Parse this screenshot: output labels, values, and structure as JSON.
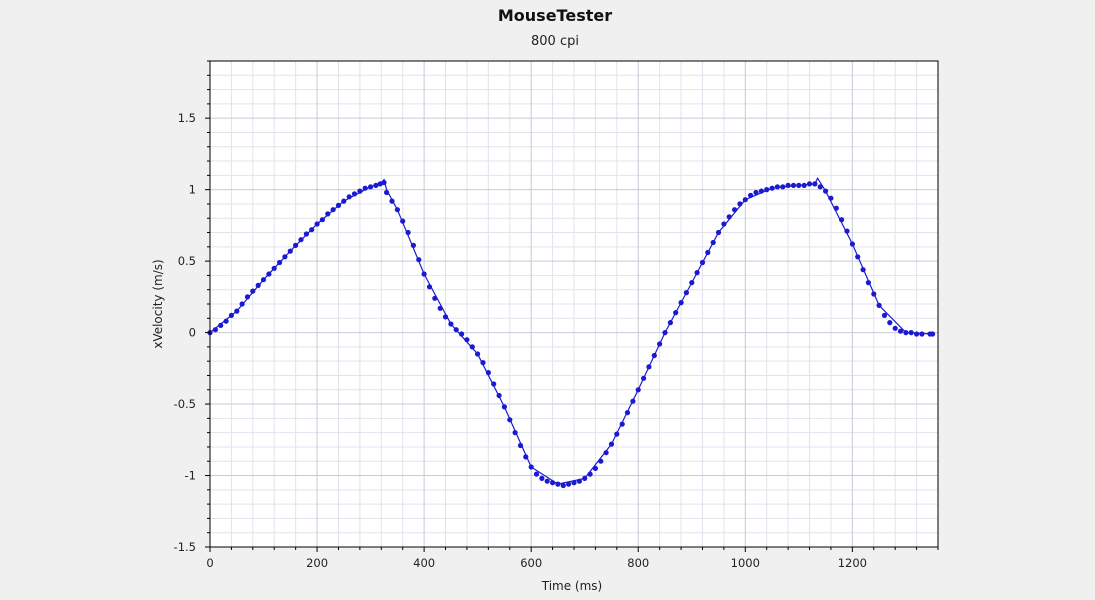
{
  "chart_data": {
    "type": "scatter",
    "title": "MouseTester",
    "subtitle": "800 cpi",
    "xlabel": "Time (ms)",
    "ylabel": "xVelocity (m/s)",
    "xlim": [
      0,
      1360
    ],
    "ylim": [
      -1.5,
      1.9
    ],
    "x_ticks": [
      0,
      200,
      400,
      600,
      800,
      1000,
      1200
    ],
    "x_tick_labels": [
      "0",
      "200",
      "400",
      "600",
      "800",
      "1000",
      "1200"
    ],
    "y_ticks": [
      1.5,
      1,
      0.5,
      0,
      -0.5,
      -1,
      -1.5
    ],
    "y_tick_labels": [
      "1.5",
      "1",
      "0.5",
      "0",
      "-0.5",
      "-1",
      "-1.5"
    ],
    "grid": true,
    "colors": {
      "background": "#f0f0f0",
      "plot_area": "#ffffff",
      "points": "#1a1ad2",
      "line": "#1a1ad2",
      "grid_major": "#c9c9d9",
      "grid_minor": "#e2e2ec",
      "axis": "#000000"
    },
    "series": [
      {
        "values": [
          [
            0,
            0.0
          ],
          [
            10,
            0.02
          ],
          [
            20,
            0.05
          ],
          [
            30,
            0.08
          ],
          [
            40,
            0.12
          ],
          [
            50,
            0.15
          ],
          [
            60,
            0.2
          ],
          [
            70,
            0.25
          ],
          [
            80,
            0.29
          ],
          [
            90,
            0.33
          ],
          [
            100,
            0.37
          ],
          [
            110,
            0.41
          ],
          [
            120,
            0.45
          ],
          [
            130,
            0.49
          ],
          [
            140,
            0.53
          ],
          [
            150,
            0.57
          ],
          [
            160,
            0.61
          ],
          [
            170,
            0.65
          ],
          [
            180,
            0.69
          ],
          [
            190,
            0.72
          ],
          [
            200,
            0.76
          ],
          [
            210,
            0.79
          ],
          [
            220,
            0.83
          ],
          [
            230,
            0.86
          ],
          [
            240,
            0.89
          ],
          [
            250,
            0.92
          ],
          [
            260,
            0.95
          ],
          [
            270,
            0.97
          ],
          [
            280,
            0.99
          ],
          [
            290,
            1.01
          ],
          [
            300,
            1.02
          ],
          [
            310,
            1.03
          ],
          [
            318,
            1.04
          ],
          [
            325,
            1.05
          ],
          [
            330,
            0.98
          ],
          [
            340,
            0.92
          ],
          [
            350,
            0.86
          ],
          [
            360,
            0.78
          ],
          [
            370,
            0.7
          ],
          [
            380,
            0.61
          ],
          [
            390,
            0.51
          ],
          [
            400,
            0.41
          ],
          [
            410,
            0.32
          ],
          [
            420,
            0.24
          ],
          [
            430,
            0.17
          ],
          [
            440,
            0.11
          ],
          [
            450,
            0.06
          ],
          [
            460,
            0.02
          ],
          [
            470,
            -0.01
          ],
          [
            480,
            -0.05
          ],
          [
            490,
            -0.1
          ],
          [
            500,
            -0.15
          ],
          [
            510,
            -0.21
          ],
          [
            520,
            -0.28
          ],
          [
            530,
            -0.36
          ],
          [
            540,
            -0.44
          ],
          [
            550,
            -0.52
          ],
          [
            560,
            -0.61
          ],
          [
            570,
            -0.7
          ],
          [
            580,
            -0.79
          ],
          [
            590,
            -0.87
          ],
          [
            600,
            -0.94
          ],
          [
            610,
            -0.99
          ],
          [
            620,
            -1.02
          ],
          [
            630,
            -1.04
          ],
          [
            640,
            -1.05
          ],
          [
            650,
            -1.06
          ],
          [
            660,
            -1.07
          ],
          [
            670,
            -1.06
          ],
          [
            680,
            -1.05
          ],
          [
            690,
            -1.04
          ],
          [
            700,
            -1.02
          ],
          [
            710,
            -0.99
          ],
          [
            720,
            -0.95
          ],
          [
            730,
            -0.9
          ],
          [
            740,
            -0.84
          ],
          [
            750,
            -0.78
          ],
          [
            760,
            -0.71
          ],
          [
            770,
            -0.64
          ],
          [
            780,
            -0.56
          ],
          [
            790,
            -0.48
          ],
          [
            800,
            -0.4
          ],
          [
            810,
            -0.32
          ],
          [
            820,
            -0.24
          ],
          [
            830,
            -0.16
          ],
          [
            840,
            -0.08
          ],
          [
            850,
            0.0
          ],
          [
            860,
            0.07
          ],
          [
            870,
            0.14
          ],
          [
            880,
            0.21
          ],
          [
            890,
            0.28
          ],
          [
            900,
            0.35
          ],
          [
            910,
            0.42
          ],
          [
            920,
            0.49
          ],
          [
            930,
            0.56
          ],
          [
            940,
            0.63
          ],
          [
            950,
            0.7
          ],
          [
            960,
            0.76
          ],
          [
            970,
            0.81
          ],
          [
            980,
            0.86
          ],
          [
            990,
            0.9
          ],
          [
            1000,
            0.93
          ],
          [
            1010,
            0.96
          ],
          [
            1020,
            0.98
          ],
          [
            1030,
            0.99
          ],
          [
            1040,
            1.0
          ],
          [
            1050,
            1.01
          ],
          [
            1060,
            1.02
          ],
          [
            1070,
            1.02
          ],
          [
            1080,
            1.03
          ],
          [
            1090,
            1.03
          ],
          [
            1100,
            1.03
          ],
          [
            1110,
            1.03
          ],
          [
            1120,
            1.04
          ],
          [
            1130,
            1.04
          ],
          [
            1140,
            1.02
          ],
          [
            1150,
            0.99
          ],
          [
            1160,
            0.94
          ],
          [
            1170,
            0.87
          ],
          [
            1180,
            0.79
          ],
          [
            1190,
            0.71
          ],
          [
            1200,
            0.62
          ],
          [
            1210,
            0.53
          ],
          [
            1220,
            0.44
          ],
          [
            1230,
            0.35
          ],
          [
            1240,
            0.27
          ],
          [
            1250,
            0.19
          ],
          [
            1260,
            0.12
          ],
          [
            1270,
            0.07
          ],
          [
            1280,
            0.03
          ],
          [
            1290,
            0.01
          ],
          [
            1300,
            0.0
          ],
          [
            1310,
            0.0
          ],
          [
            1320,
            -0.01
          ],
          [
            1330,
            -0.01
          ],
          [
            1345,
            -0.01
          ],
          [
            1350,
            -0.01
          ]
        ],
        "line_values": [
          [
            0,
            0.0
          ],
          [
            50,
            0.15
          ],
          [
            100,
            0.37
          ],
          [
            150,
            0.57
          ],
          [
            200,
            0.76
          ],
          [
            250,
            0.92
          ],
          [
            300,
            1.02
          ],
          [
            320,
            1.04
          ],
          [
            325,
            1.07
          ],
          [
            330,
            1.0
          ],
          [
            350,
            0.86
          ],
          [
            400,
            0.41
          ],
          [
            450,
            0.06
          ],
          [
            500,
            -0.15
          ],
          [
            550,
            -0.52
          ],
          [
            600,
            -0.94
          ],
          [
            650,
            -1.06
          ],
          [
            700,
            -1.02
          ],
          [
            750,
            -0.78
          ],
          [
            800,
            -0.4
          ],
          [
            850,
            0.0
          ],
          [
            900,
            0.35
          ],
          [
            950,
            0.7
          ],
          [
            1000,
            0.93
          ],
          [
            1050,
            1.01
          ],
          [
            1100,
            1.03
          ],
          [
            1130,
            1.04
          ],
          [
            1135,
            1.08
          ],
          [
            1150,
            0.99
          ],
          [
            1200,
            0.62
          ],
          [
            1250,
            0.19
          ],
          [
            1300,
            0.0
          ],
          [
            1350,
            -0.01
          ]
        ]
      }
    ]
  }
}
